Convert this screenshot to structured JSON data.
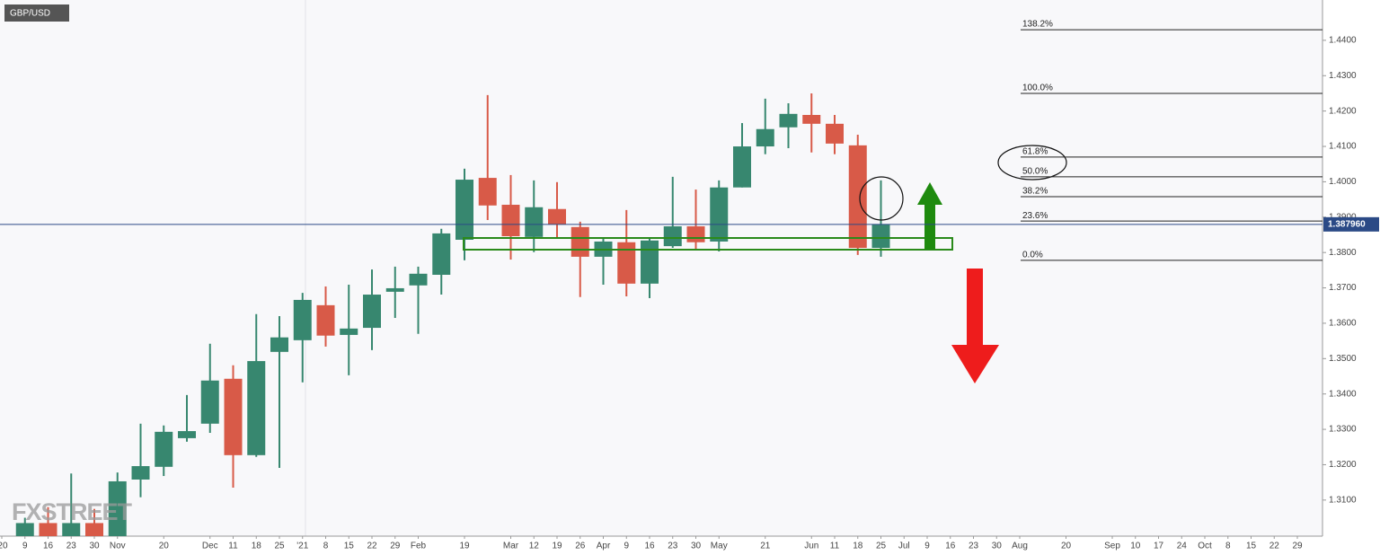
{
  "chart_data": {
    "type": "candlestick",
    "symbol": "GBP/USD",
    "watermark": "FXSTREET",
    "categories": [
      "'20",
      "9",
      "16",
      "23",
      "30",
      "Nov",
      null,
      "20",
      null,
      "Dec",
      "11",
      "18",
      "25",
      "'21",
      "8",
      "15",
      "22",
      "29",
      "Feb",
      null,
      "19",
      null,
      "Mar",
      "12",
      "19",
      "26",
      "Apr",
      "9",
      "16",
      "23",
      "30",
      "May",
      null,
      "21",
      null,
      "Jun",
      "11",
      "18",
      "25",
      "Jul",
      "9",
      "16",
      "23",
      "30",
      "Aug",
      null,
      "20",
      null,
      "Sep",
      "10",
      "17",
      "24",
      "Oct",
      "8",
      "15",
      "22",
      "29"
    ],
    "open": [
      null,
      1.2995,
      1.3035,
      1.2995,
      1.3035,
      1.2995,
      1.3158,
      1.3194,
      1.3275,
      1.3316,
      1.3443,
      1.3227,
      1.3519,
      1.3552,
      1.3651,
      1.3567,
      1.3587,
      1.3689,
      1.3707,
      1.3737,
      1.3836,
      1.4011,
      1.3935,
      1.3844,
      1.3923,
      1.3872,
      1.3788,
      1.3829,
      1.3712,
      1.3818,
      1.3874,
      1.3831,
      1.3984,
      1.41,
      1.4154,
      1.4189,
      1.4164,
      1.4103,
      1.3813,
      null,
      null,
      null,
      null,
      null,
      null,
      null,
      null,
      null,
      null,
      null,
      null,
      null,
      null,
      null,
      null,
      null,
      null
    ],
    "high": [
      null,
      1.305,
      1.308,
      1.3175,
      1.3075,
      1.3178,
      1.3316,
      1.3311,
      1.3397,
      1.3542,
      1.3481,
      1.3626,
      1.362,
      1.3686,
      1.3704,
      1.3709,
      1.3752,
      1.376,
      1.376,
      1.3867,
      1.4037,
      1.4245,
      1.4019,
      1.4004,
      1.3999,
      1.3887,
      1.3839,
      1.392,
      1.3839,
      1.4014,
      1.3978,
      1.4004,
      1.4166,
      1.4235,
      1.4222,
      1.425,
      1.4189,
      1.4133,
      1.4004,
      null,
      null,
      null,
      null,
      null,
      null,
      null,
      null,
      null,
      null,
      null,
      null,
      null,
      null,
      null,
      null,
      null,
      null
    ],
    "low": [
      null,
      1.2985,
      1.2985,
      1.2985,
      1.2985,
      1.2985,
      1.3108,
      1.3168,
      1.3265,
      1.329,
      1.3135,
      1.3222,
      1.3191,
      1.3433,
      1.3534,
      1.3453,
      1.3524,
      1.3615,
      1.357,
      1.3681,
      1.3778,
      1.3892,
      1.378,
      1.3801,
      1.3839,
      1.3674,
      1.3709,
      1.3676,
      1.3671,
      1.3813,
      1.3808,
      1.3803,
      1.3984,
      1.4078,
      1.4095,
      1.4083,
      1.4078,
      1.3793,
      1.3788,
      null,
      null,
      null,
      null,
      null,
      null,
      null,
      null,
      null,
      null,
      null,
      null,
      null,
      null,
      null,
      null,
      null,
      null
    ],
    "close": [
      null,
      1.3035,
      1.2995,
      1.3035,
      1.2995,
      1.3153,
      1.3196,
      1.3293,
      1.3295,
      1.3438,
      1.3227,
      1.3493,
      1.356,
      1.3666,
      1.3565,
      1.3585,
      1.3681,
      1.3699,
      1.374,
      1.3854,
      1.4006,
      1.3933,
      1.3846,
      1.3928,
      1.3879,
      1.3788,
      1.3831,
      1.3712,
      1.3834,
      1.3874,
      1.3829,
      1.3984,
      1.41,
      1.4149,
      1.4192,
      1.4164,
      1.4108,
      1.3813,
      1.3879,
      null,
      null,
      null,
      null,
      null,
      null,
      null,
      null,
      null,
      null,
      null,
      null,
      null,
      null,
      null,
      null,
      null,
      null
    ],
    "up_color": "#37876f",
    "down_color": "#d85a48",
    "ylim": [
      1.2998,
      1.4514
    ],
    "yticks": [
      {
        "value": 1.31,
        "label": "1.3100"
      },
      {
        "value": 1.32,
        "label": "1.3200"
      },
      {
        "value": 1.33,
        "label": "1.3300"
      },
      {
        "value": 1.34,
        "label": "1.3400"
      },
      {
        "value": 1.35,
        "label": "1.3500"
      },
      {
        "value": 1.36,
        "label": "1.3600"
      },
      {
        "value": 1.37,
        "label": "1.3700"
      },
      {
        "value": 1.38,
        "label": "1.3800"
      },
      {
        "value": 1.39,
        "label": "1.3900"
      },
      {
        "value": 1.4,
        "label": "1.4000"
      },
      {
        "value": 1.41,
        "label": "1.4100"
      },
      {
        "value": 1.42,
        "label": "1.4200"
      },
      {
        "value": 1.43,
        "label": "1.4300"
      },
      {
        "value": 1.44,
        "label": "1.4400"
      }
    ],
    "last_price": {
      "value": 1.38796,
      "label": "1.387960"
    },
    "fib_levels": [
      {
        "label": "138.2%",
        "value": 1.443
      },
      {
        "label": "100.0%",
        "value": 1.425
      },
      {
        "label": "61.8%",
        "value": 1.407
      },
      {
        "label": "50.0%",
        "value": 1.4014
      },
      {
        "label": "38.2%",
        "value": 1.3958
      },
      {
        "label": "23.6%",
        "value": 1.3889
      },
      {
        "label": "0.0%",
        "value": 1.3778
      }
    ]
  }
}
